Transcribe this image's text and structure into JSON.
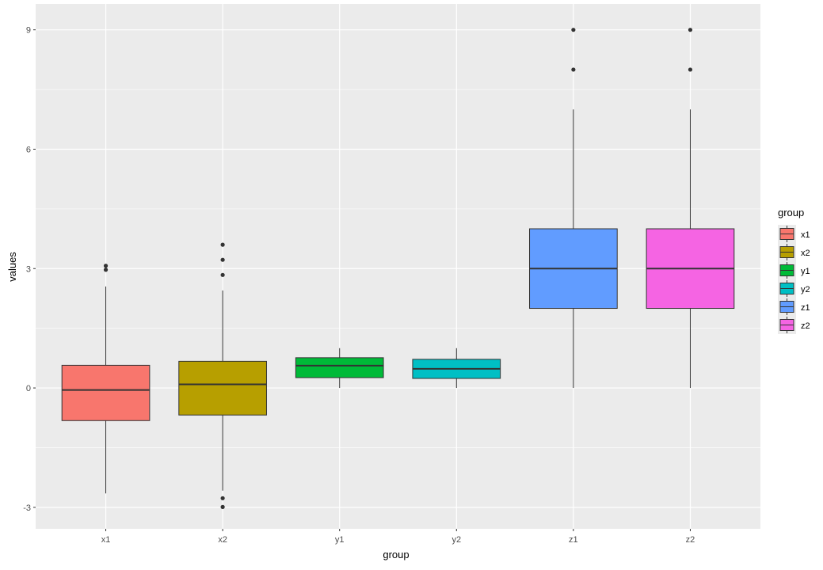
{
  "chart_data": {
    "type": "boxplot",
    "title": "",
    "xlabel": "group",
    "ylabel": "values",
    "ylim": [
      -3.54,
      9.65
    ],
    "yticks": [
      -3,
      0,
      3,
      6,
      9
    ],
    "ytick_labels": [
      "-3",
      "0",
      "3",
      "6",
      "9"
    ],
    "grid": true,
    "legend": {
      "title": "group",
      "placement": "right"
    },
    "categories": [
      "x1",
      "x2",
      "y1",
      "y2",
      "z1",
      "z2"
    ],
    "colors": [
      "#F8766D",
      "#B79F00",
      "#00BA38",
      "#00BFC4",
      "#619CFF",
      "#F564E3"
    ],
    "boxes": [
      {
        "name": "x1",
        "lower": -2.65,
        "q1": -0.82,
        "median": -0.05,
        "q3": 0.57,
        "upper": 2.55,
        "outliers": [
          3.07,
          2.97
        ]
      },
      {
        "name": "x2",
        "lower": -2.58,
        "q1": -0.68,
        "median": 0.09,
        "q3": 0.67,
        "upper": 2.45,
        "outliers": [
          3.6,
          3.22,
          2.84,
          -2.77,
          -2.99
        ]
      },
      {
        "name": "y1",
        "lower": 0.0,
        "q1": 0.26,
        "median": 0.56,
        "q3": 0.76,
        "upper": 1.0,
        "outliers": []
      },
      {
        "name": "y2",
        "lower": 0.0,
        "q1": 0.24,
        "median": 0.48,
        "q3": 0.72,
        "upper": 1.0,
        "outliers": []
      },
      {
        "name": "z1",
        "lower": 0,
        "q1": 2,
        "median": 3,
        "q3": 4,
        "upper": 7,
        "outliers": [
          8,
          9
        ]
      },
      {
        "name": "z2",
        "lower": 0,
        "q1": 2,
        "median": 3,
        "q3": 4,
        "upper": 7,
        "outliers": [
          8,
          9
        ]
      }
    ]
  }
}
